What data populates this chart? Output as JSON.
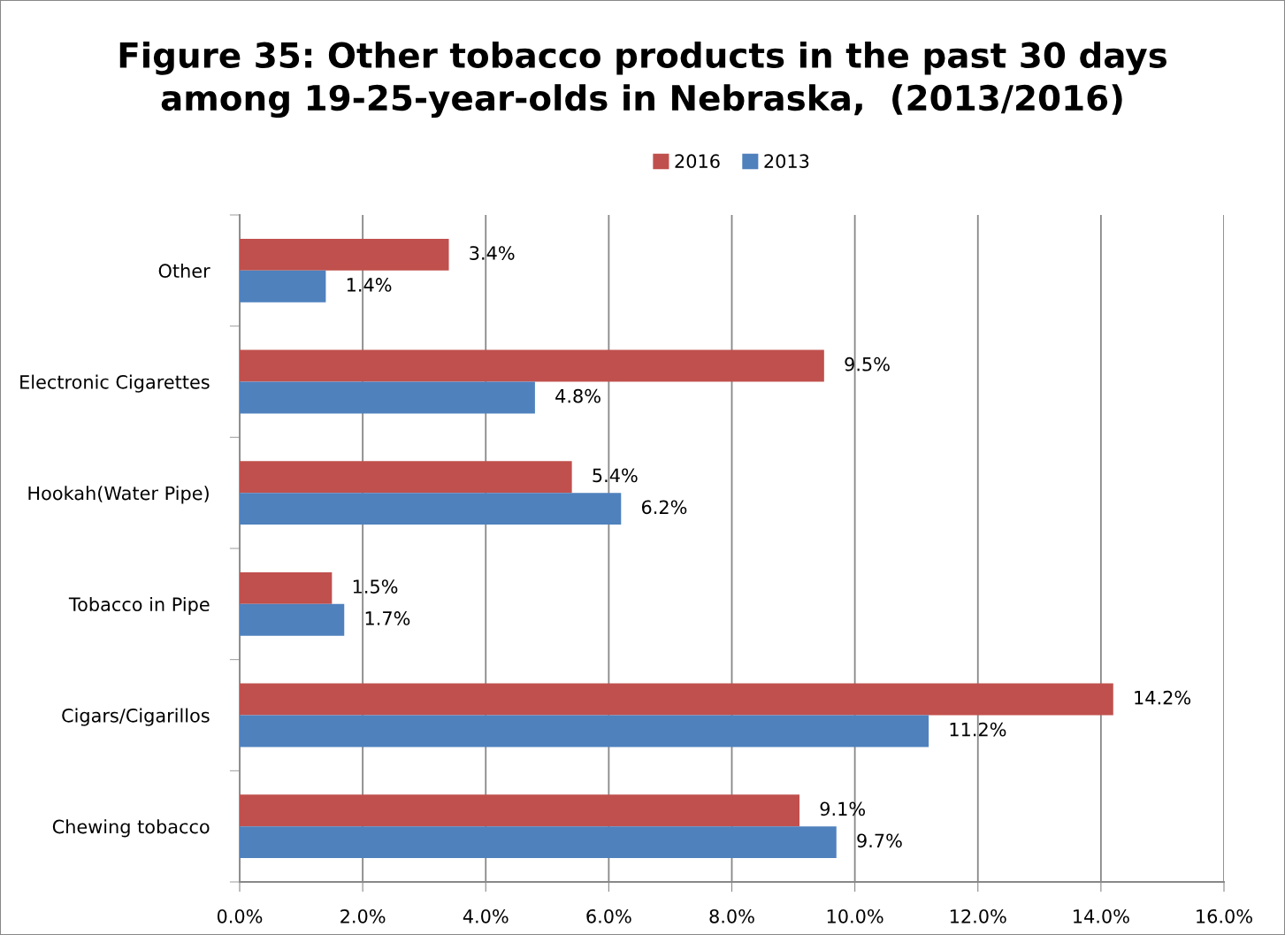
{
  "chart_data": {
    "type": "bar",
    "orientation": "horizontal",
    "title": "Figure 35: Other tobacco products in the past 30 days\namong 19-25-year-olds in Nebraska,  (2013/2016)",
    "categories": [
      "Other",
      "Electronic Cigarettes",
      "Hookah(Water Pipe)",
      "Tobacco in Pipe",
      "Cigars/Cigarillos",
      "Chewing tobacco"
    ],
    "series": [
      {
        "name": "2016",
        "color": "#c0504d",
        "values": [
          3.4,
          9.5,
          5.4,
          1.5,
          14.2,
          9.1
        ],
        "value_labels": [
          "3.4%",
          "9.5%",
          "5.4%",
          "1.5%",
          "14.2%",
          "9.1%"
        ]
      },
      {
        "name": "2013",
        "color": "#4f81bd",
        "values": [
          1.4,
          4.8,
          6.2,
          1.7,
          11.2,
          9.7
        ],
        "value_labels": [
          "1.4%",
          "4.8%",
          "6.2%",
          "1.7%",
          "11.2%",
          "9.7%"
        ]
      }
    ],
    "xlim": [
      0,
      16
    ],
    "xticks": [
      {
        "value": 0,
        "label": "0.0%"
      },
      {
        "value": 2,
        "label": "2.0%"
      },
      {
        "value": 4,
        "label": "4.0%"
      },
      {
        "value": 6,
        "label": "6.0%"
      },
      {
        "value": 8,
        "label": "8.0%"
      },
      {
        "value": 10,
        "label": "10.0%"
      },
      {
        "value": 12,
        "label": "12.0%"
      },
      {
        "value": 14,
        "label": "14.0%"
      },
      {
        "value": 16,
        "label": "16.0%"
      }
    ],
    "grid": "x",
    "legend": "top"
  }
}
